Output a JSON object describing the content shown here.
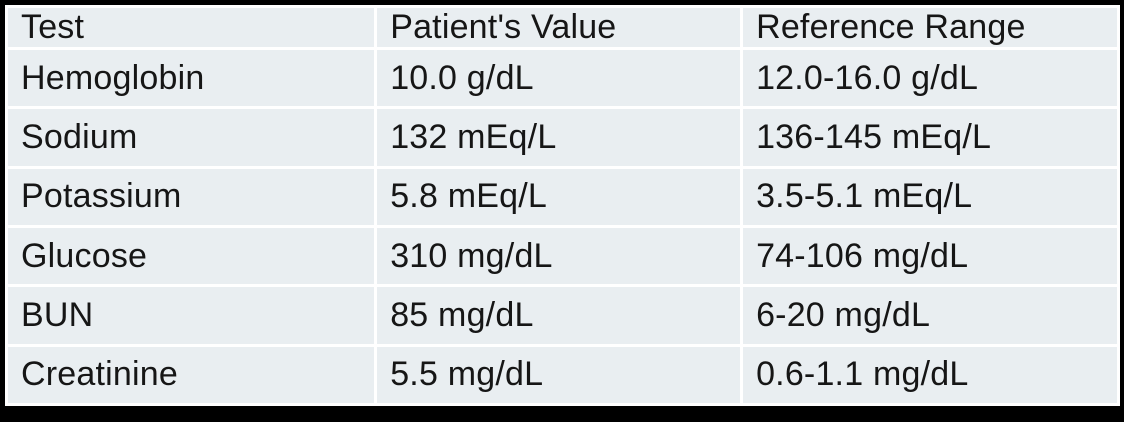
{
  "table": {
    "headers": [
      "Test",
      "Patient's Value",
      "Reference Range"
    ],
    "rows": [
      [
        "Hemoglobin",
        "10.0 g/dL",
        "12.0-16.0 g/dL"
      ],
      [
        "Sodium",
        "132 mEq/L",
        "136-145 mEq/L"
      ],
      [
        "Potassium",
        "5.8 mEq/L",
        "3.5-5.1 mEq/L"
      ],
      [
        "Glucose",
        "310 mg/dL",
        "74-106 mg/dL"
      ],
      [
        "BUN",
        "85 mg/dL",
        "6-20 mg/dL"
      ],
      [
        "Creatinine",
        "5.5 mg/dL",
        "0.6-1.1 mg/dL"
      ]
    ]
  },
  "colors": {
    "cell_background": "#e9eef1",
    "separator": "#ffffff",
    "border": "#000000",
    "text": "#161616"
  }
}
